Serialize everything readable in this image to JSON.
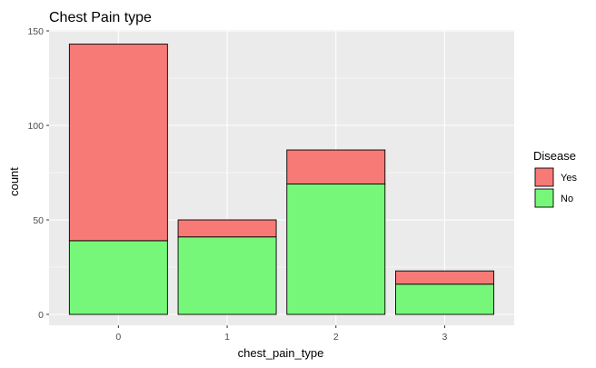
{
  "chart_data": {
    "type": "bar",
    "stacked": true,
    "title": "Chest Pain type",
    "xlabel": "chest_pain_type",
    "ylabel": "count",
    "categories": [
      "0",
      "1",
      "2",
      "3"
    ],
    "series": [
      {
        "name": "No",
        "values": [
          39,
          41,
          69,
          16
        ],
        "color": "#77f77a"
      },
      {
        "name": "Yes",
        "values": [
          104,
          9,
          18,
          7
        ],
        "color": "#f77a77"
      }
    ],
    "ylim": [
      0,
      150
    ],
    "yticks": [
      0,
      50,
      100,
      150
    ],
    "grid": true,
    "legend": {
      "title": "Disease",
      "position": "right",
      "entries": [
        {
          "label": "Yes",
          "color": "#f77a77"
        },
        {
          "label": "No",
          "color": "#77f77a"
        }
      ]
    },
    "colors": {
      "panel": "#ebebeb",
      "grid_major": "#ffffff",
      "bar_outline": "#000000"
    }
  }
}
